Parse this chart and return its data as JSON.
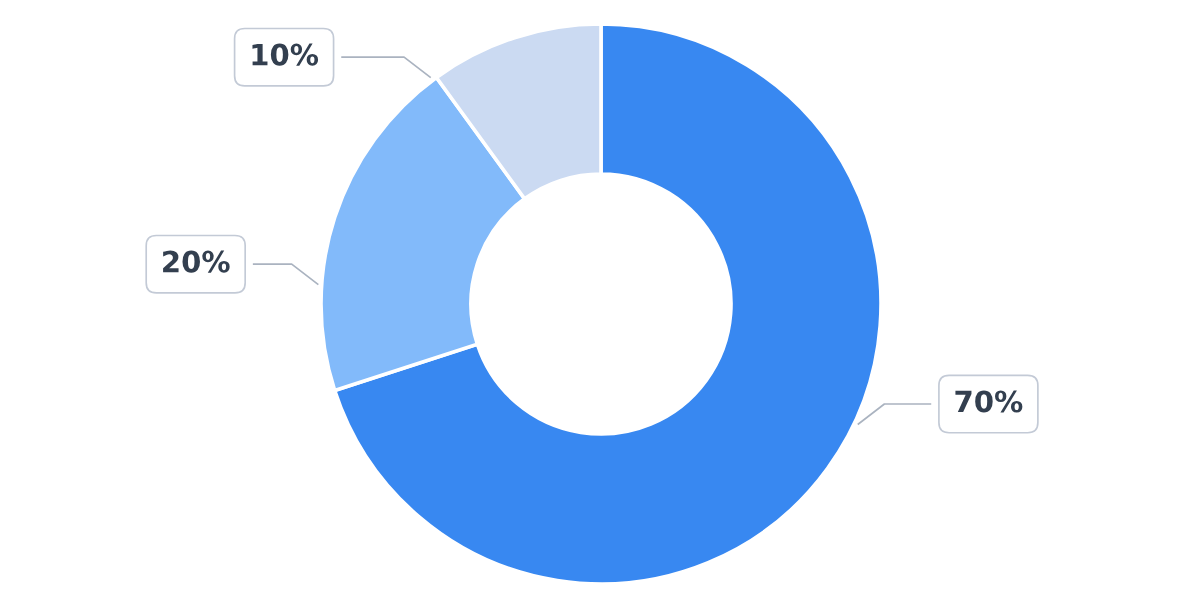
{
  "chart_data": {
    "type": "donut",
    "categories": [
      null,
      null,
      null
    ],
    "values": [
      70,
      20,
      10
    ],
    "colors": [
      "#3888f1",
      "#82bafa",
      "#cbdaf2"
    ],
    "value_labels": [
      "70%",
      "20%",
      "10%"
    ],
    "legend": false
  }
}
